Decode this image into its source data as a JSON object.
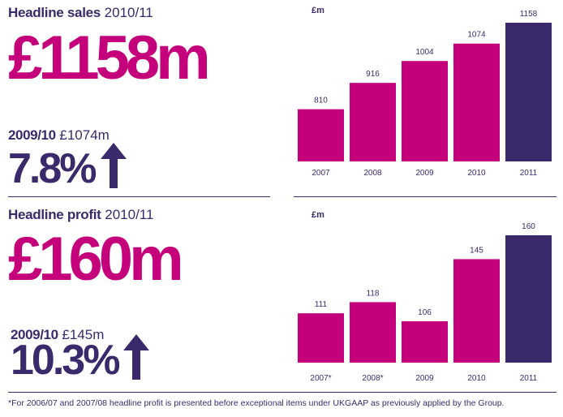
{
  "colors": {
    "accent": "#c4007a",
    "highlight": "#3a2a6b",
    "text": "#3a2a6b"
  },
  "sales": {
    "title": "Headline sales",
    "period": "2010/11",
    "big_value": "£1158m",
    "prev_label": "2009/10",
    "prev_value": "£1074m",
    "growth": "7.8%",
    "arrow": "up-arrow-icon"
  },
  "profit": {
    "title": "Headline profit",
    "period": "2010/11",
    "big_value": "£160m",
    "prev_label": "2009/10",
    "prev_value": "£145m",
    "growth": "10.3%",
    "arrow": "up-arrow-icon"
  },
  "footnote": "*For 2006/07 and 2007/08 headline profit is presented before exceptional items under UKGAAP as previously applied by the Group.",
  "chart_data": [
    {
      "type": "bar",
      "unit": "£m",
      "categories": [
        "2007",
        "2008",
        "2009",
        "2010",
        "2011"
      ],
      "values": [
        810,
        916,
        1004,
        1074,
        1158
      ],
      "data_labels": [
        "810",
        "916",
        "1004",
        "1074",
        "1158"
      ],
      "ylim": [
        600,
        1158
      ],
      "highlight_index": 4,
      "grid": false
    },
    {
      "type": "bar",
      "unit": "£m",
      "categories": [
        "2007*",
        "2008*",
        "2009",
        "2010",
        "2011"
      ],
      "values": [
        111,
        118,
        106,
        145,
        160
      ],
      "data_labels": [
        "111",
        "118",
        "106",
        "145",
        "160"
      ],
      "ylim": [
        80,
        160
      ],
      "highlight_index": 4,
      "grid": false
    }
  ]
}
